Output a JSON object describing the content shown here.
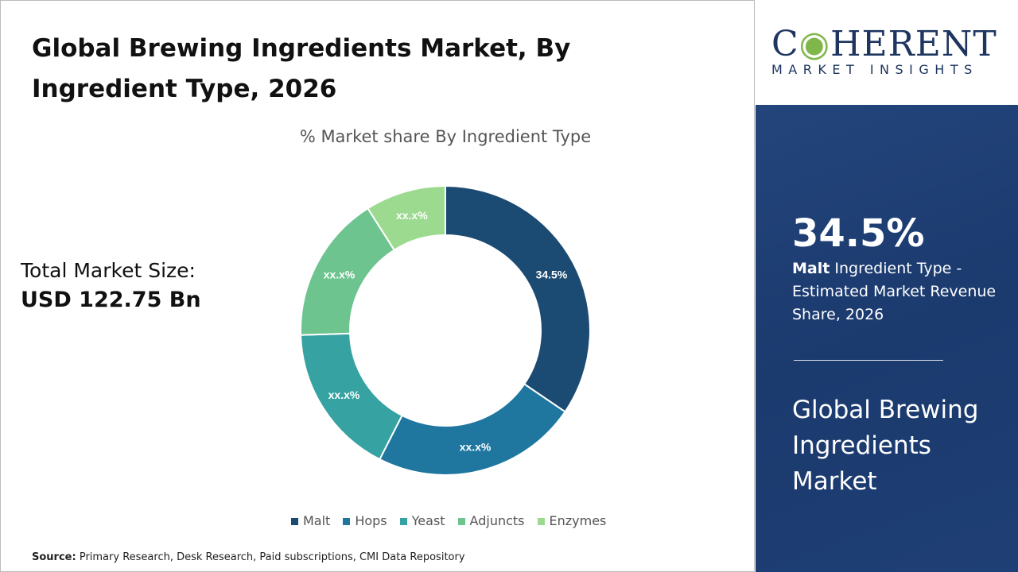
{
  "title": "Global Brewing Ingredients Market, By Ingredient Type, 2026",
  "total_market": {
    "label": "Total Market Size:",
    "value": "USD 122.75 Bn"
  },
  "source": {
    "label": "Source:",
    "text": "Primary Research, Desk Research, Paid subscriptions, CMI Data Repository"
  },
  "logo": {
    "name": "COHERENT",
    "tagline": "MARKET INSIGHTS"
  },
  "highlight": {
    "value": "34.5%",
    "segment": "Malt",
    "desc": "Ingredient Type - Estimated Market Revenue Share, 2026",
    "market": "Global Brewing Ingredients Market"
  },
  "chart_data": {
    "type": "pie",
    "donut": true,
    "title": "% Market share By Ingredient Type",
    "categories": [
      "Malt",
      "Hops",
      "Yeast",
      "Adjuncts",
      "Enzymes"
    ],
    "values": [
      34.5,
      23,
      17,
      16.5,
      9
    ],
    "labels": [
      "34.5%",
      "xx.x%",
      "xx.x%",
      "xx.x%",
      "xx.x%"
    ],
    "colors": [
      "#1b4a72",
      "#1f77a0",
      "#36a3a2",
      "#6dc48f",
      "#9bda8f"
    ],
    "legend": "bottom"
  }
}
